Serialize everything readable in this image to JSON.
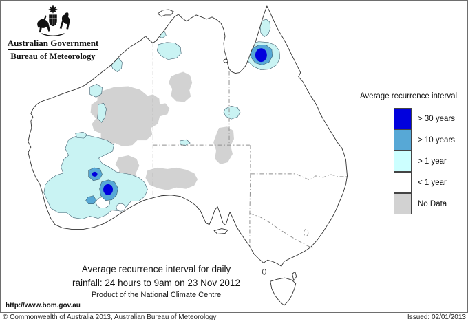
{
  "header": {
    "government": "Australian Government",
    "bureau": "Bureau of Meteorology"
  },
  "legend": {
    "title": "Average recurrence interval",
    "items": [
      {
        "label": "> 30 years",
        "color": "#0101dd"
      },
      {
        "label": "> 10 years",
        "color": "#57a8d6"
      },
      {
        "label": "> 1 year",
        "color": "#ccffff"
      },
      {
        "label": "< 1 year",
        "color": "#ffffff"
      },
      {
        "label": "No Data",
        "color": "#d2d2d2"
      }
    ]
  },
  "caption": {
    "line1": "Average recurrence interval for daily",
    "line2": "rainfall: 24 hours to 9am on 23 Nov 2012",
    "line3": "Product of the National Climate Centre"
  },
  "footer": {
    "url": "http://www.bom.gov.au",
    "copyright": "© Commonwealth of Australia 2013, Australian Bureau of Meteorology",
    "issued": "Issued: 02/01/2013"
  },
  "map": {
    "region": "Australia",
    "colors": {
      "frame": "#6e6e6e",
      "coastline": "#2f2f2f",
      "state_border": "#8f8f8f",
      "contour": "#3f5f6f",
      "no_data": "#d2d2d2",
      "gt1yr": "#c9f3f3",
      "gt10yr": "#57a8d6",
      "gt30yr": "#0101dd",
      "lt1yr": "#ffffff"
    }
  }
}
